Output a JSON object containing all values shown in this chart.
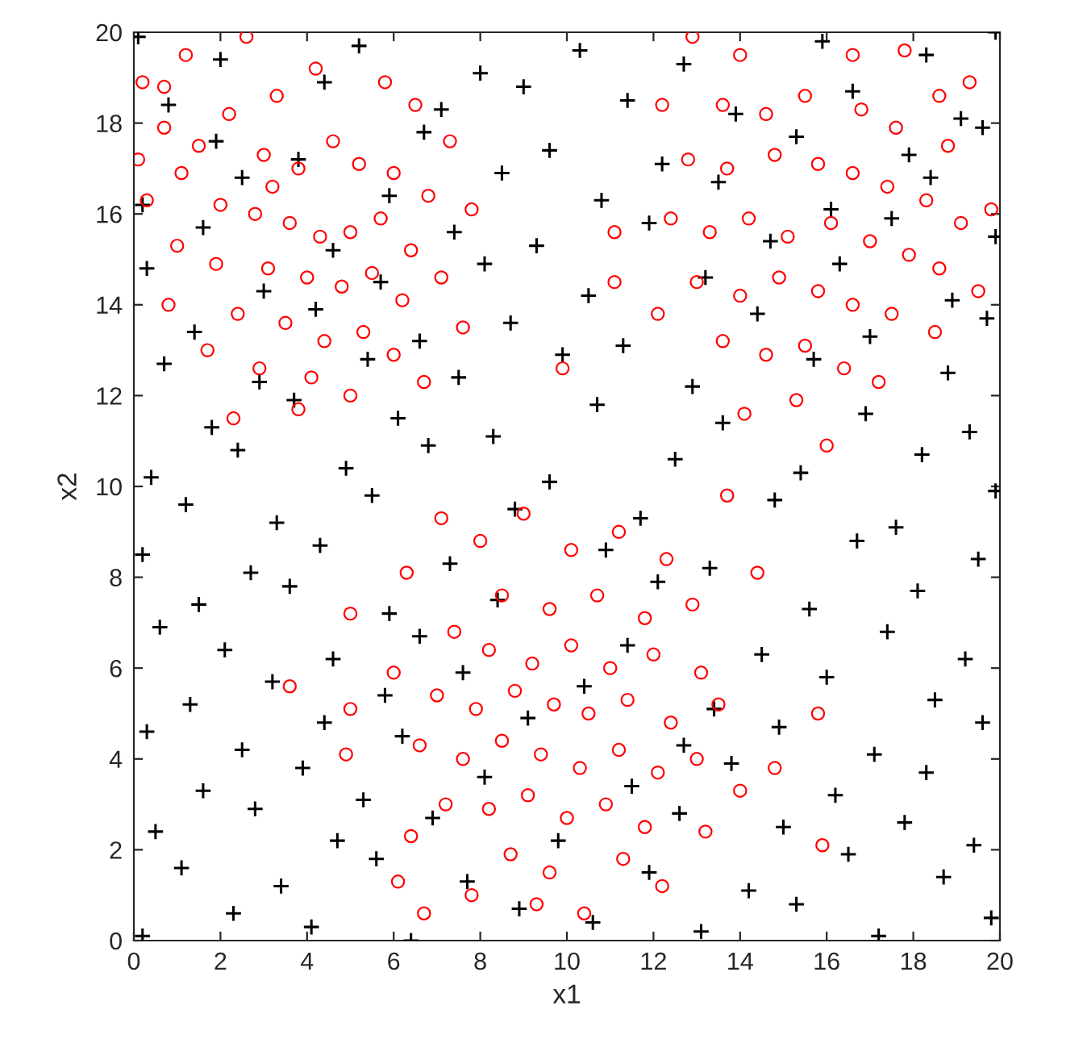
{
  "chart_data": {
    "type": "scatter",
    "xlabel": "x1",
    "ylabel": "x2",
    "xlim": [
      0,
      20
    ],
    "ylim": [
      0,
      20
    ],
    "xticks": [
      0,
      2,
      4,
      6,
      8,
      10,
      12,
      14,
      16,
      18,
      20
    ],
    "yticks": [
      0,
      2,
      4,
      6,
      8,
      10,
      12,
      14,
      16,
      18,
      20
    ],
    "series": [
      {
        "color": "#000000",
        "marker": "cross",
        "x": [
          0.2,
          2.3,
          4.1,
          6.4,
          8.9,
          10.6,
          13.1,
          15.3,
          17.2,
          19.8,
          1.1,
          3.4,
          5.6,
          7.7,
          11.9,
          14.2,
          16.5,
          18.7,
          0.5,
          2.8,
          4.7,
          6.9,
          9.8,
          12.6,
          15.0,
          17.8,
          19.4,
          1.6,
          3.9,
          5.3,
          8.1,
          11.5,
          13.8,
          16.2,
          18.3,
          0.3,
          2.5,
          4.4,
          6.2,
          9.1,
          12.7,
          14.9,
          17.1,
          19.6,
          1.3,
          3.2,
          5.8,
          7.6,
          10.4,
          13.4,
          16.0,
          18.5,
          0.6,
          2.1,
          4.6,
          6.6,
          11.4,
          14.5,
          17.4,
          19.2,
          1.5,
          3.6,
          5.9,
          8.4,
          12.1,
          15.6,
          18.1,
          0.2,
          2.7,
          4.3,
          7.3,
          10.9,
          13.3,
          16.7,
          19.5,
          1.2,
          3.3,
          5.5,
          8.8,
          11.7,
          14.8,
          17.6,
          19.9,
          0.4,
          2.4,
          4.9,
          6.8,
          9.6,
          12.5,
          15.4,
          18.2,
          1.8,
          3.7,
          6.1,
          8.3,
          10.7,
          13.6,
          16.9,
          19.3,
          0.7,
          2.9,
          5.4,
          7.5,
          9.9,
          12.9,
          15.7,
          18.8,
          1.4,
          4.2,
          6.6,
          8.7,
          11.3,
          14.4,
          17.0,
          19.7,
          0.3,
          3.0,
          5.7,
          8.1,
          10.5,
          13.2,
          16.3,
          18.9,
          1.6,
          4.6,
          7.4,
          9.3,
          11.9,
          14.7,
          17.5,
          19.9,
          0.2,
          2.5,
          5.9,
          8.5,
          10.8,
          13.5,
          16.1,
          18.4,
          1.9,
          3.8,
          6.7,
          9.6,
          12.2,
          15.3,
          17.9,
          19.6,
          0.8,
          4.4,
          7.1,
          9.0,
          11.4,
          13.9,
          16.6,
          19.1,
          0.1,
          2.0,
          5.2,
          8.0,
          10.3,
          12.7,
          15.9,
          18.3,
          19.9
        ],
        "values": [
          0.1,
          0.6,
          0.3,
          0.0,
          0.7,
          0.4,
          0.2,
          0.8,
          0.1,
          0.5,
          1.6,
          1.2,
          1.8,
          1.3,
          1.5,
          1.1,
          1.9,
          1.4,
          2.4,
          2.9,
          2.2,
          2.7,
          2.2,
          2.8,
          2.5,
          2.6,
          2.1,
          3.3,
          3.8,
          3.1,
          3.6,
          3.4,
          3.9,
          3.2,
          3.7,
          4.6,
          4.2,
          4.8,
          4.5,
          4.9,
          4.3,
          4.7,
          4.1,
          4.8,
          5.2,
          5.7,
          5.4,
          5.9,
          5.6,
          5.1,
          5.8,
          5.3,
          6.9,
          6.4,
          6.2,
          6.7,
          6.5,
          6.3,
          6.8,
          6.2,
          7.4,
          7.8,
          7.2,
          7.5,
          7.9,
          7.3,
          7.7,
          8.5,
          8.1,
          8.7,
          8.3,
          8.6,
          8.2,
          8.8,
          8.4,
          9.6,
          9.2,
          9.8,
          9.5,
          9.3,
          9.7,
          9.1,
          9.9,
          10.2,
          10.8,
          10.4,
          10.9,
          10.1,
          10.6,
          10.3,
          10.7,
          11.3,
          11.9,
          11.5,
          11.1,
          11.8,
          11.4,
          11.6,
          11.2,
          12.7,
          12.3,
          12.8,
          12.4,
          12.9,
          12.2,
          12.8,
          12.5,
          13.4,
          13.9,
          13.2,
          13.6,
          13.1,
          13.8,
          13.3,
          13.7,
          14.8,
          14.3,
          14.5,
          14.9,
          14.2,
          14.6,
          14.9,
          14.1,
          15.7,
          15.2,
          15.6,
          15.3,
          15.8,
          15.4,
          15.9,
          15.5,
          16.2,
          16.8,
          16.4,
          16.9,
          16.3,
          16.7,
          16.1,
          16.8,
          17.6,
          17.2,
          17.8,
          17.4,
          17.1,
          17.7,
          17.3,
          17.9,
          18.4,
          18.9,
          18.3,
          18.8,
          18.5,
          18.2,
          18.7,
          18.1,
          19.9,
          19.4,
          19.7,
          19.1,
          19.6,
          19.3,
          19.8,
          19.5,
          20.0
        ]
      },
      {
        "color": "#ff0000",
        "marker": "circle",
        "x": [
          2.6,
          1.2,
          0.2,
          0.7,
          0.7,
          0.1,
          1.1,
          1.5,
          3.3,
          4.2,
          5.8,
          6.5,
          7.3,
          2.2,
          3.0,
          3.8,
          4.6,
          5.2,
          6.0,
          6.8,
          7.8,
          2.0,
          2.8,
          3.6,
          4.3,
          5.0,
          5.7,
          6.4,
          1.0,
          1.9,
          3.1,
          4.0,
          4.8,
          5.5,
          6.2,
          7.1,
          0.8,
          2.4,
          3.5,
          4.4,
          5.3,
          6.0,
          2.9,
          4.1,
          5.0,
          1.7,
          3.8,
          6.7,
          2.3,
          7.6,
          0.3,
          3.2,
          12.9,
          19.3,
          19.8,
          11.1,
          9.9,
          11.1,
          12.2,
          14.0,
          16.6,
          17.8,
          18.6,
          13.6,
          14.6,
          15.5,
          16.8,
          17.6,
          18.8,
          12.8,
          13.7,
          14.8,
          15.8,
          16.6,
          17.4,
          18.3,
          19.1,
          12.4,
          13.3,
          14.2,
          15.1,
          16.1,
          17.0,
          17.9,
          18.6,
          13.0,
          14.0,
          14.9,
          15.8,
          16.6,
          17.5,
          18.5,
          13.6,
          14.6,
          15.5,
          16.4,
          17.2,
          14.1,
          15.3,
          16.0,
          12.1,
          19.5,
          7.1,
          3.6,
          4.9,
          6.1,
          6.7,
          5.0,
          6.0,
          6.3,
          5.0,
          13.7,
          14.4,
          15.8,
          15.9,
          14.8,
          14.0,
          10.4,
          12.2,
          8.0,
          9.0,
          10.1,
          11.2,
          12.3,
          8.5,
          9.6,
          10.7,
          11.8,
          12.9,
          7.4,
          8.2,
          9.2,
          10.1,
          11.0,
          12.0,
          13.1,
          7.0,
          7.9,
          8.8,
          9.7,
          10.5,
          11.4,
          12.4,
          13.5,
          6.6,
          7.6,
          8.5,
          9.4,
          10.3,
          11.2,
          12.1,
          13.0,
          7.2,
          8.2,
          9.1,
          10.0,
          10.9,
          11.8,
          8.7,
          9.6,
          11.3,
          7.8,
          9.3,
          13.2,
          6.4
        ],
        "values": [
          19.9,
          19.5,
          18.9,
          18.8,
          17.9,
          17.2,
          16.9,
          17.5,
          18.6,
          19.2,
          18.9,
          18.4,
          17.6,
          18.2,
          17.3,
          17.0,
          17.6,
          17.1,
          16.9,
          16.4,
          16.1,
          16.2,
          16.0,
          15.8,
          15.5,
          15.6,
          15.9,
          15.2,
          15.3,
          14.9,
          14.8,
          14.6,
          14.4,
          14.7,
          14.1,
          14.6,
          14.0,
          13.8,
          13.6,
          13.2,
          13.4,
          12.9,
          12.6,
          12.4,
          12.0,
          13.0,
          11.7,
          12.3,
          11.5,
          13.5,
          16.3,
          16.6,
          19.9,
          18.9,
          16.1,
          14.5,
          12.6,
          15.6,
          18.4,
          19.5,
          19.5,
          19.6,
          18.6,
          18.4,
          18.2,
          18.6,
          18.3,
          17.9,
          17.5,
          17.2,
          17.0,
          17.3,
          17.1,
          16.9,
          16.6,
          16.3,
          15.8,
          15.9,
          15.6,
          15.9,
          15.5,
          15.8,
          15.4,
          15.1,
          14.8,
          14.5,
          14.2,
          14.6,
          14.3,
          14.0,
          13.8,
          13.4,
          13.2,
          12.9,
          13.1,
          12.6,
          12.3,
          11.6,
          11.9,
          10.9,
          13.8,
          14.3,
          9.3,
          5.6,
          4.1,
          1.3,
          0.6,
          5.1,
          5.9,
          8.1,
          7.2,
          9.8,
          8.1,
          5.0,
          2.1,
          3.8,
          3.3,
          0.6,
          1.2,
          8.8,
          9.4,
          8.6,
          9.0,
          8.4,
          7.6,
          7.3,
          7.6,
          7.1,
          7.4,
          6.8,
          6.4,
          6.1,
          6.5,
          6.0,
          6.3,
          5.9,
          5.4,
          5.1,
          5.5,
          5.2,
          5.0,
          5.3,
          4.8,
          5.2,
          4.3,
          4.0,
          4.4,
          4.1,
          3.8,
          4.2,
          3.7,
          4.0,
          3.0,
          2.9,
          3.2,
          2.7,
          3.0,
          2.5,
          1.9,
          1.5,
          1.8,
          1.0,
          0.8,
          2.4,
          2.3
        ]
      }
    ]
  }
}
